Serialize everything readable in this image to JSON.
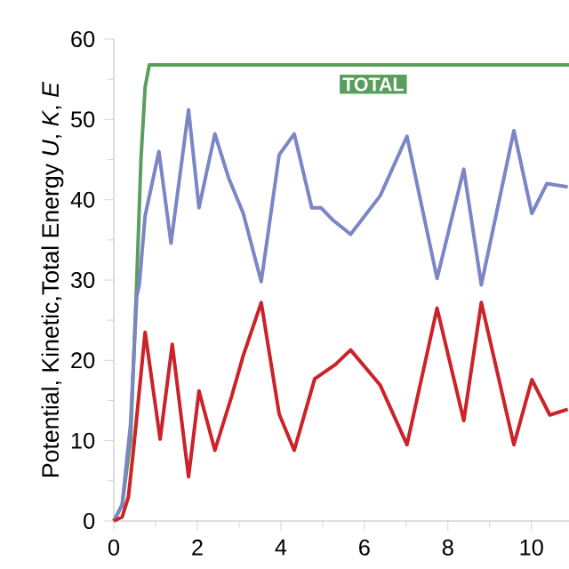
{
  "chart_data": {
    "type": "line",
    "ylabel": "Potential, Kinetic,Total Energy  *U*, *K*, *E*",
    "xlim": [
      0,
      10.9
    ],
    "ylim": [
      0,
      60
    ],
    "xticks": [
      0,
      2,
      4,
      6,
      8,
      10
    ],
    "yticks": [
      0,
      10,
      20,
      30,
      40,
      50,
      60
    ],
    "grid": false,
    "legend": false,
    "line_style": "solid",
    "marker": "none",
    "series": [
      {
        "name": "TOTAL",
        "color": "#5a9e5e",
        "x": [
          0,
          0.2,
          0.4,
          0.55,
          0.65,
          0.75,
          0.85,
          10.9
        ],
        "values": [
          0,
          2,
          10,
          30,
          45,
          54,
          56.8,
          56.8
        ]
      },
      {
        "color": "#7b86c4",
        "x": [
          0,
          0.2,
          0.4,
          0.55,
          0.61,
          0.75,
          1.08,
          1.37,
          1.79,
          2.04,
          2.42,
          2.75,
          3.1,
          3.53,
          3.96,
          4.32,
          4.74,
          4.96,
          5.24,
          5.67,
          6.38,
          7.02,
          7.74,
          8.38,
          8.8,
          9.58,
          10.01,
          10.37,
          10.87
        ],
        "values": [
          0,
          2,
          12,
          28,
          29.4,
          38,
          46,
          34.6,
          51.2,
          39,
          48.2,
          42.7,
          38.3,
          29.8,
          45.6,
          48.2,
          39,
          39,
          37.5,
          35.7,
          40.5,
          47.9,
          30.2,
          43.8,
          29.4,
          48.6,
          38.3,
          42,
          41.6
        ]
      },
      {
        "color": "#cc2229",
        "x": [
          0,
          0.2,
          0.35,
          0.47,
          0.75,
          1.11,
          1.4,
          1.79,
          2.04,
          2.42,
          2.82,
          3.1,
          3.53,
          3.96,
          4.32,
          4.81,
          5.31,
          5.67,
          6.38,
          7.02,
          7.74,
          8.38,
          8.8,
          9.58,
          10.01,
          10.44,
          10.87
        ],
        "values": [
          0,
          0.5,
          3,
          8.8,
          23.5,
          10.2,
          22,
          5.5,
          16.2,
          8.8,
          15.5,
          20.6,
          27.2,
          13.3,
          8.8,
          17.7,
          19.5,
          21.3,
          16.9,
          9.5,
          26.5,
          12.5,
          27.2,
          9.5,
          17.6,
          13.2,
          13.9
        ]
      }
    ]
  }
}
